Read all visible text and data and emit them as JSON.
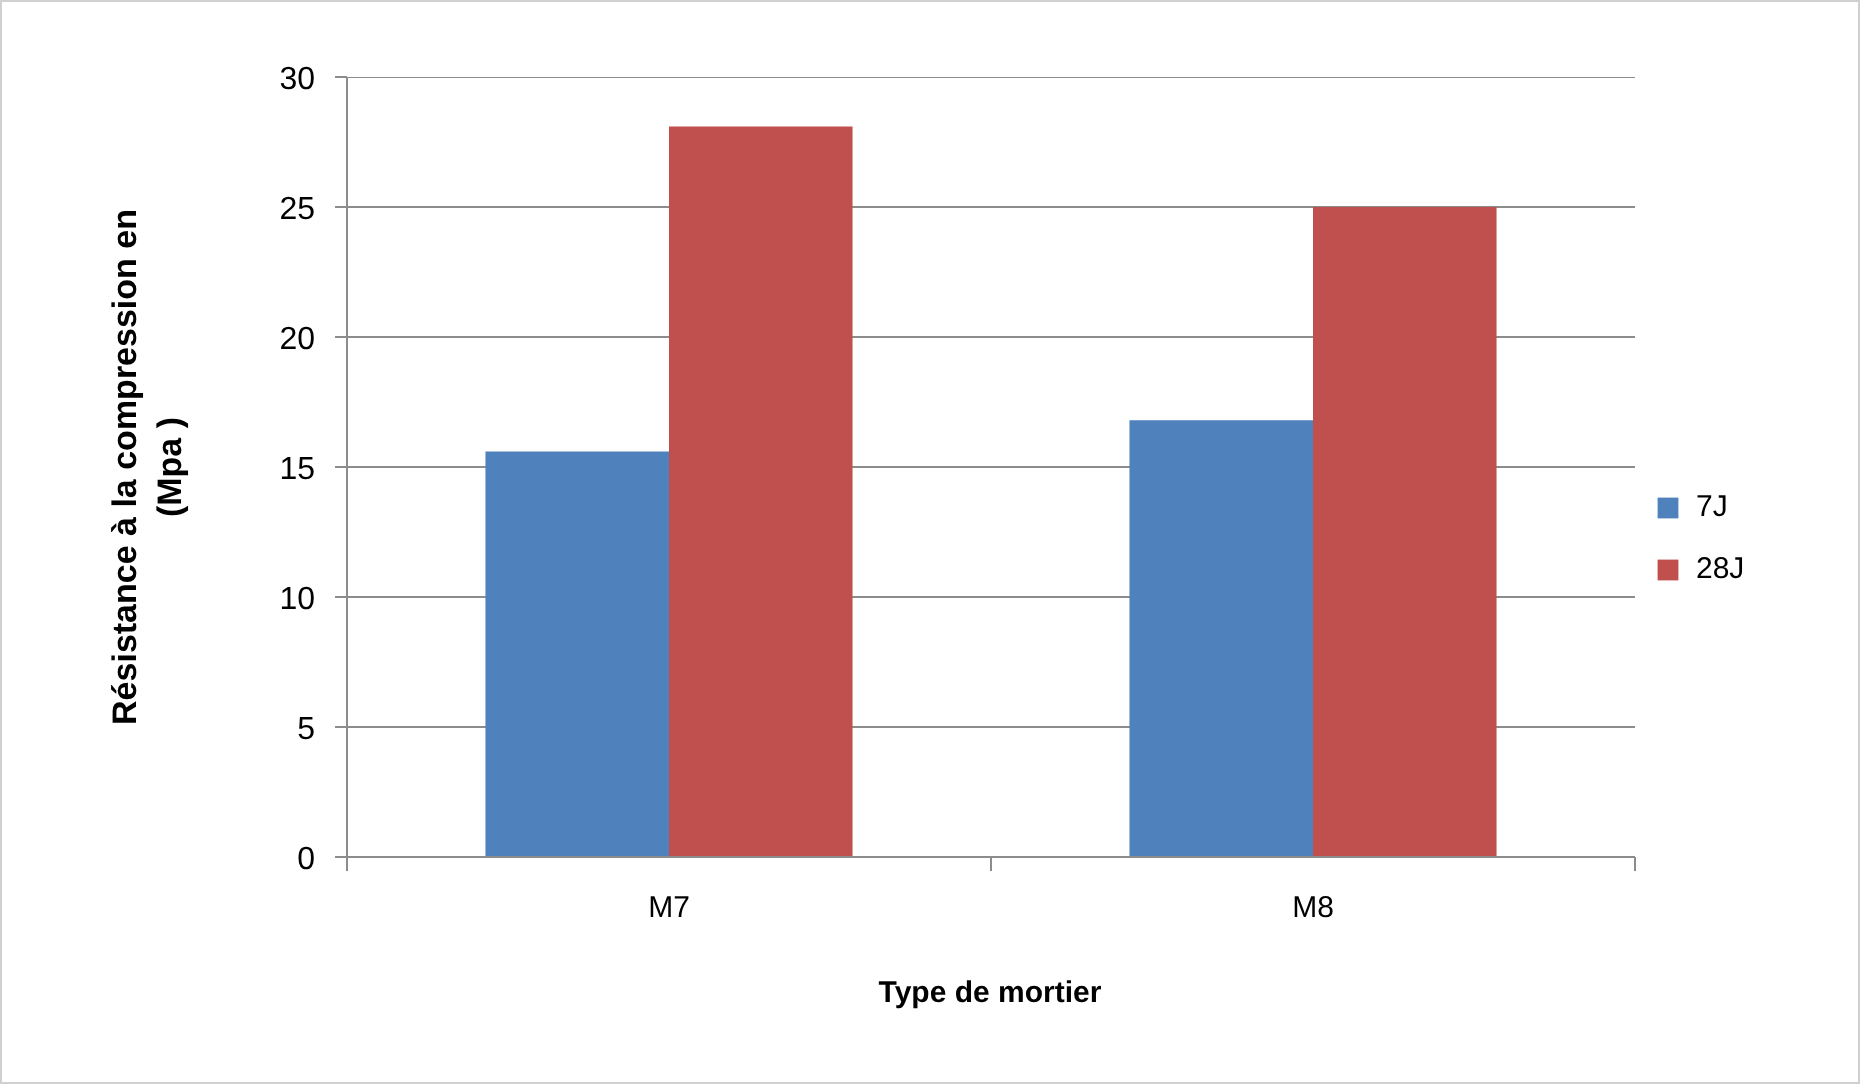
{
  "chart_data": {
    "type": "bar",
    "categories": [
      "M7",
      "M8"
    ],
    "series": [
      {
        "name": "7J",
        "color": "#4f81bd",
        "values": [
          15.6,
          16.8
        ]
      },
      {
        "name": "28J",
        "color": "#c0504d",
        "values": [
          28.1,
          25.0
        ]
      }
    ],
    "xlabel": "Type de mortier",
    "ylabel": "Résistance à la compression en (Mpa )",
    "ylim": [
      0,
      30
    ],
    "yticks": [
      0,
      5,
      10,
      15,
      20,
      25,
      30
    ],
    "grid": "y",
    "legend": "right"
  }
}
